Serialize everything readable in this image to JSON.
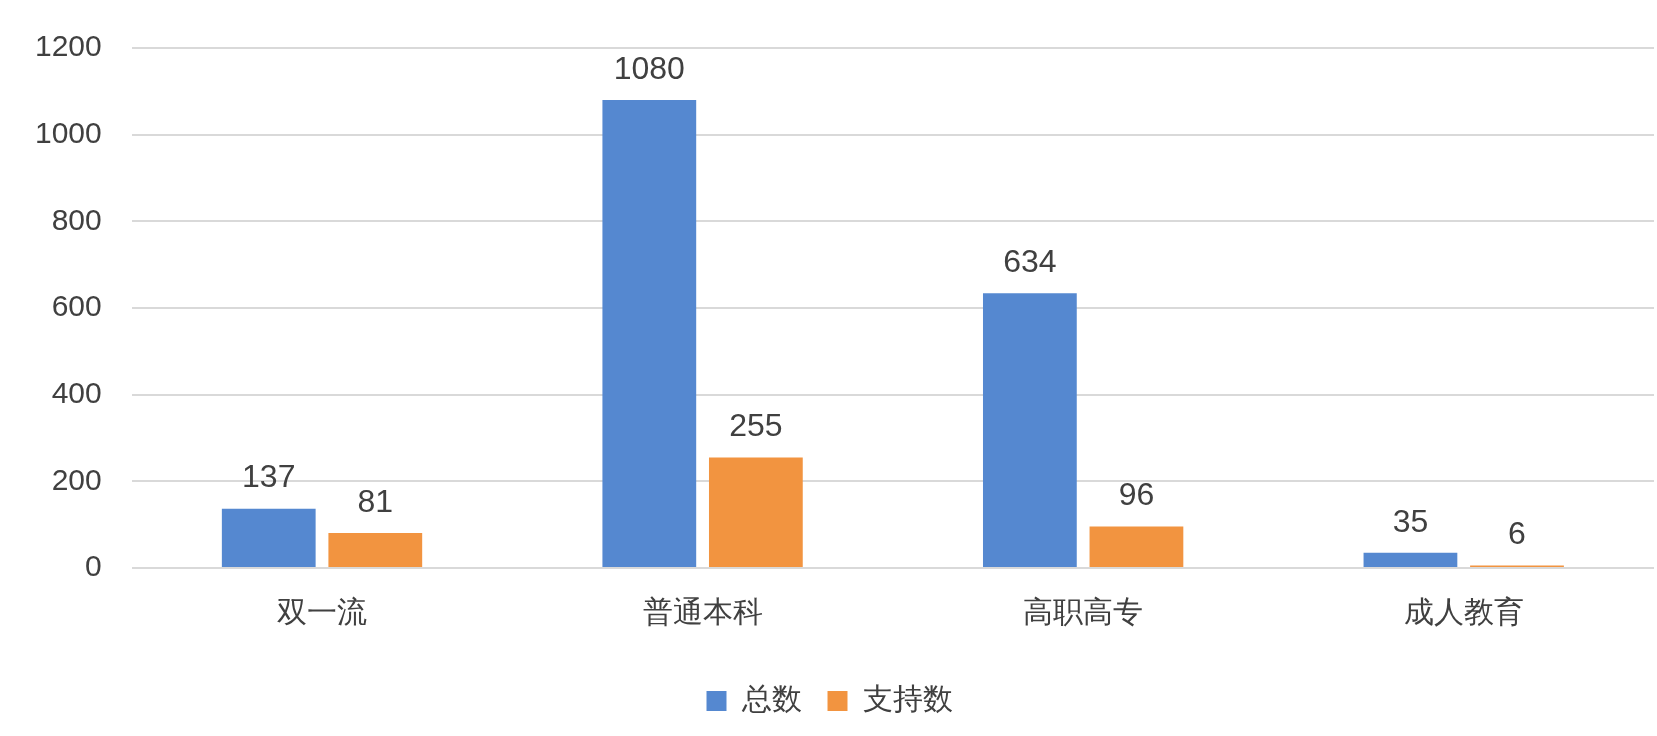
{
  "chart_data": {
    "type": "bar",
    "categories": [
      "双一流",
      "普通本科",
      "高职高专",
      "成人教育"
    ],
    "series": [
      {
        "name": "总数",
        "color": "#5588d0",
        "values": [
          137,
          1080,
          634,
          35
        ]
      },
      {
        "name": "支持数",
        "color": "#f29440",
        "values": [
          81,
          255,
          96,
          6
        ]
      }
    ],
    "ylim": [
      0,
      1200
    ],
    "yticks": [
      0,
      200,
      400,
      600,
      800,
      1000,
      1200
    ],
    "grid": "y",
    "legend": "bottom",
    "data_labels": true
  }
}
